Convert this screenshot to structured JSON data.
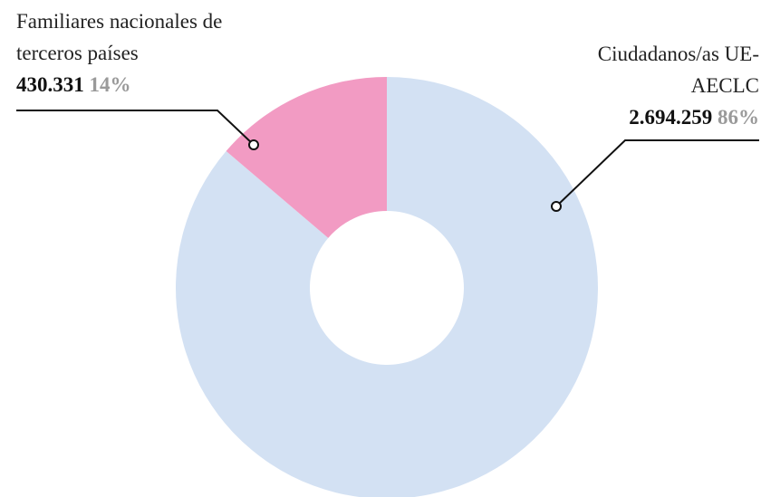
{
  "chart_data": {
    "type": "pie",
    "categories": [
      "Ciudadanos/as UE-AECLC",
      "Familiares nacionales de terceros países"
    ],
    "values": [
      2694259,
      430331
    ],
    "value_labels": [
      "2.694.259",
      "430.331"
    ],
    "percent_labels": [
      "86%",
      "14%"
    ],
    "colors": [
      "#d3e1f3",
      "#f29bc3"
    ],
    "donut": true
  }
}
